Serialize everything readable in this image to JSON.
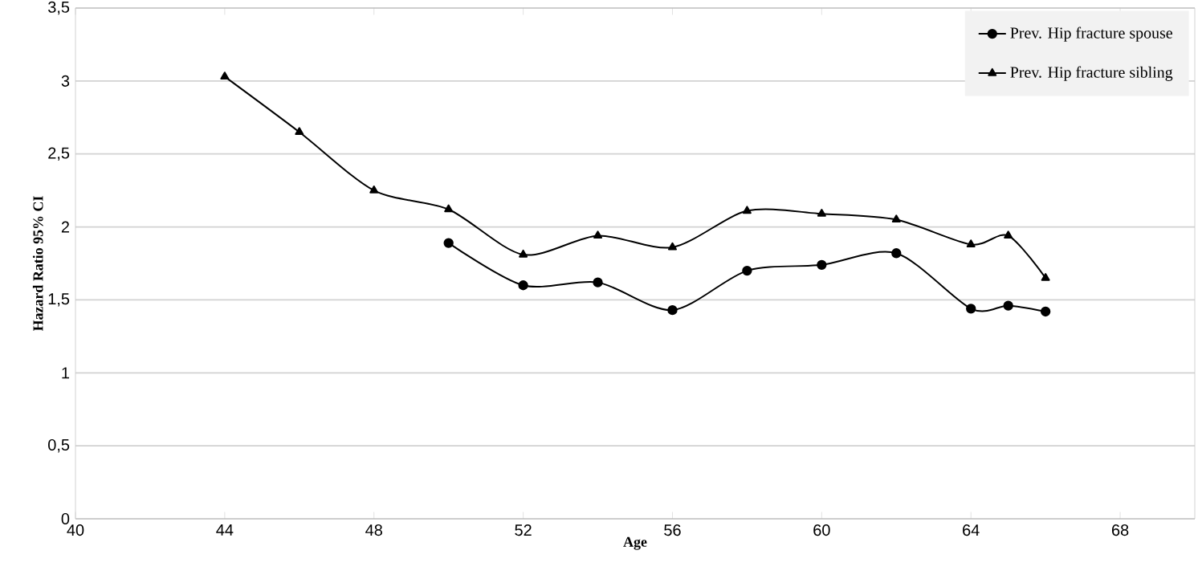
{
  "chart_data": {
    "type": "line",
    "xlabel": "Age",
    "ylabel": "Hazard Ratio 95% CI",
    "xlim": [
      40,
      70
    ],
    "xticks": [
      40,
      44,
      48,
      52,
      56,
      60,
      64,
      68
    ],
    "ylim": [
      0,
      3.5
    ],
    "yticks": [
      0,
      {
        "value": 0.5,
        "label": "0,5"
      },
      1,
      {
        "value": 1.5,
        "label": "1,5"
      },
      2,
      {
        "value": 2.5,
        "label": "2,5"
      },
      3,
      {
        "value": 3.5,
        "label": "3,5"
      }
    ],
    "grid": "y",
    "legend": "top right",
    "line_style": "solid",
    "series": [
      {
        "name": "Prev. Hip fracture spouse",
        "color": "#000000",
        "marker": "circle",
        "x": [
          50,
          52,
          54,
          56,
          58,
          60,
          62,
          64,
          65,
          66
        ],
        "values": [
          1.89,
          1.6,
          1.62,
          1.43,
          1.7,
          1.74,
          1.82,
          1.44,
          1.46,
          1.42
        ]
      },
      {
        "name": "Prev. Hip fracture sibling",
        "color": "#000000",
        "marker": "triangle",
        "x": [
          44,
          46,
          48,
          50,
          52,
          54,
          56,
          58,
          60,
          62,
          64,
          65,
          66
        ],
        "values": [
          3.03,
          2.65,
          2.25,
          2.12,
          1.81,
          1.94,
          1.86,
          2.11,
          2.09,
          2.05,
          1.88,
          1.94,
          1.65
        ]
      }
    ]
  }
}
